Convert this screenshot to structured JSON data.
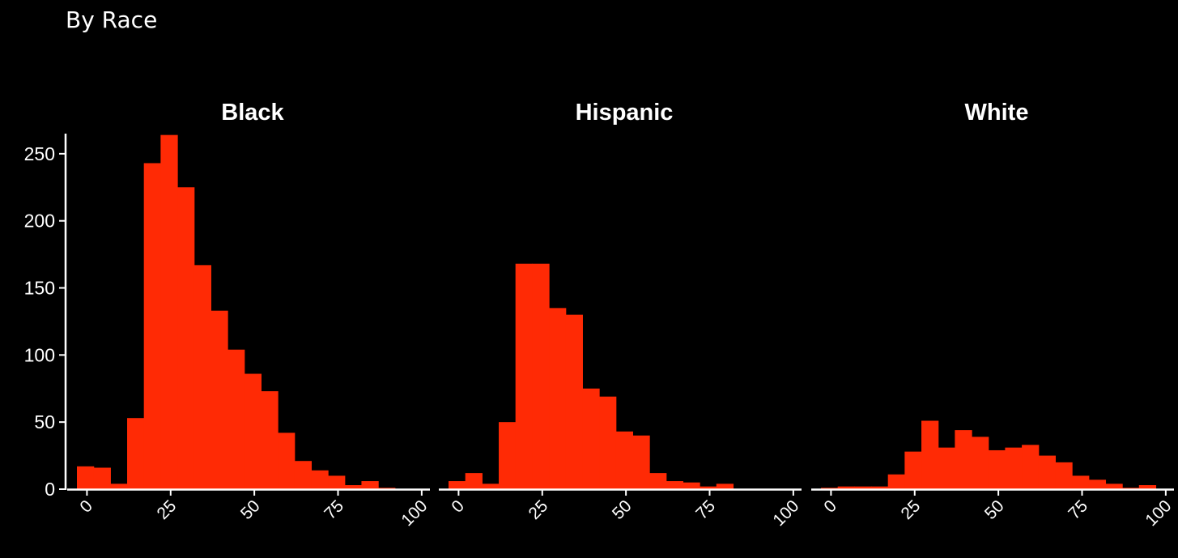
{
  "page": {
    "title": "By Race"
  },
  "colors": {
    "background": "#000000",
    "bar": "#ff2a05",
    "text": "#ffffff",
    "axis": "#ffffff"
  },
  "chart_data": {
    "type": "bar",
    "subtype": "faceted-histogram",
    "title": "By Race",
    "xlabel": "",
    "ylabel": "",
    "xlim": [
      -3,
      101
    ],
    "ylim": [
      0,
      265
    ],
    "xticks": [
      0,
      25,
      50,
      75,
      100
    ],
    "yticks": [
      0,
      50,
      100,
      150,
      200,
      250
    ],
    "bin_edges": [
      -3,
      2,
      7,
      12,
      17,
      22,
      27,
      32,
      37,
      42,
      47,
      52,
      57,
      62,
      67,
      72,
      77,
      82,
      87,
      92,
      97
    ],
    "series": [
      {
        "name": "Black",
        "values": [
          17,
          16,
          4,
          53,
          243,
          264,
          225,
          167,
          133,
          104,
          86,
          73,
          42,
          21,
          14,
          10,
          3,
          6,
          1,
          0
        ]
      },
      {
        "name": "Hispanic",
        "values": [
          6,
          12,
          4,
          50,
          168,
          168,
          135,
          130,
          75,
          69,
          43,
          40,
          12,
          6,
          5,
          2,
          4,
          0,
          0,
          0
        ]
      },
      {
        "name": "White",
        "values": [
          1,
          2,
          2,
          2,
          11,
          28,
          51,
          31,
          44,
          39,
          29,
          31,
          33,
          25,
          20,
          10,
          7,
          4,
          1,
          3
        ]
      }
    ]
  }
}
